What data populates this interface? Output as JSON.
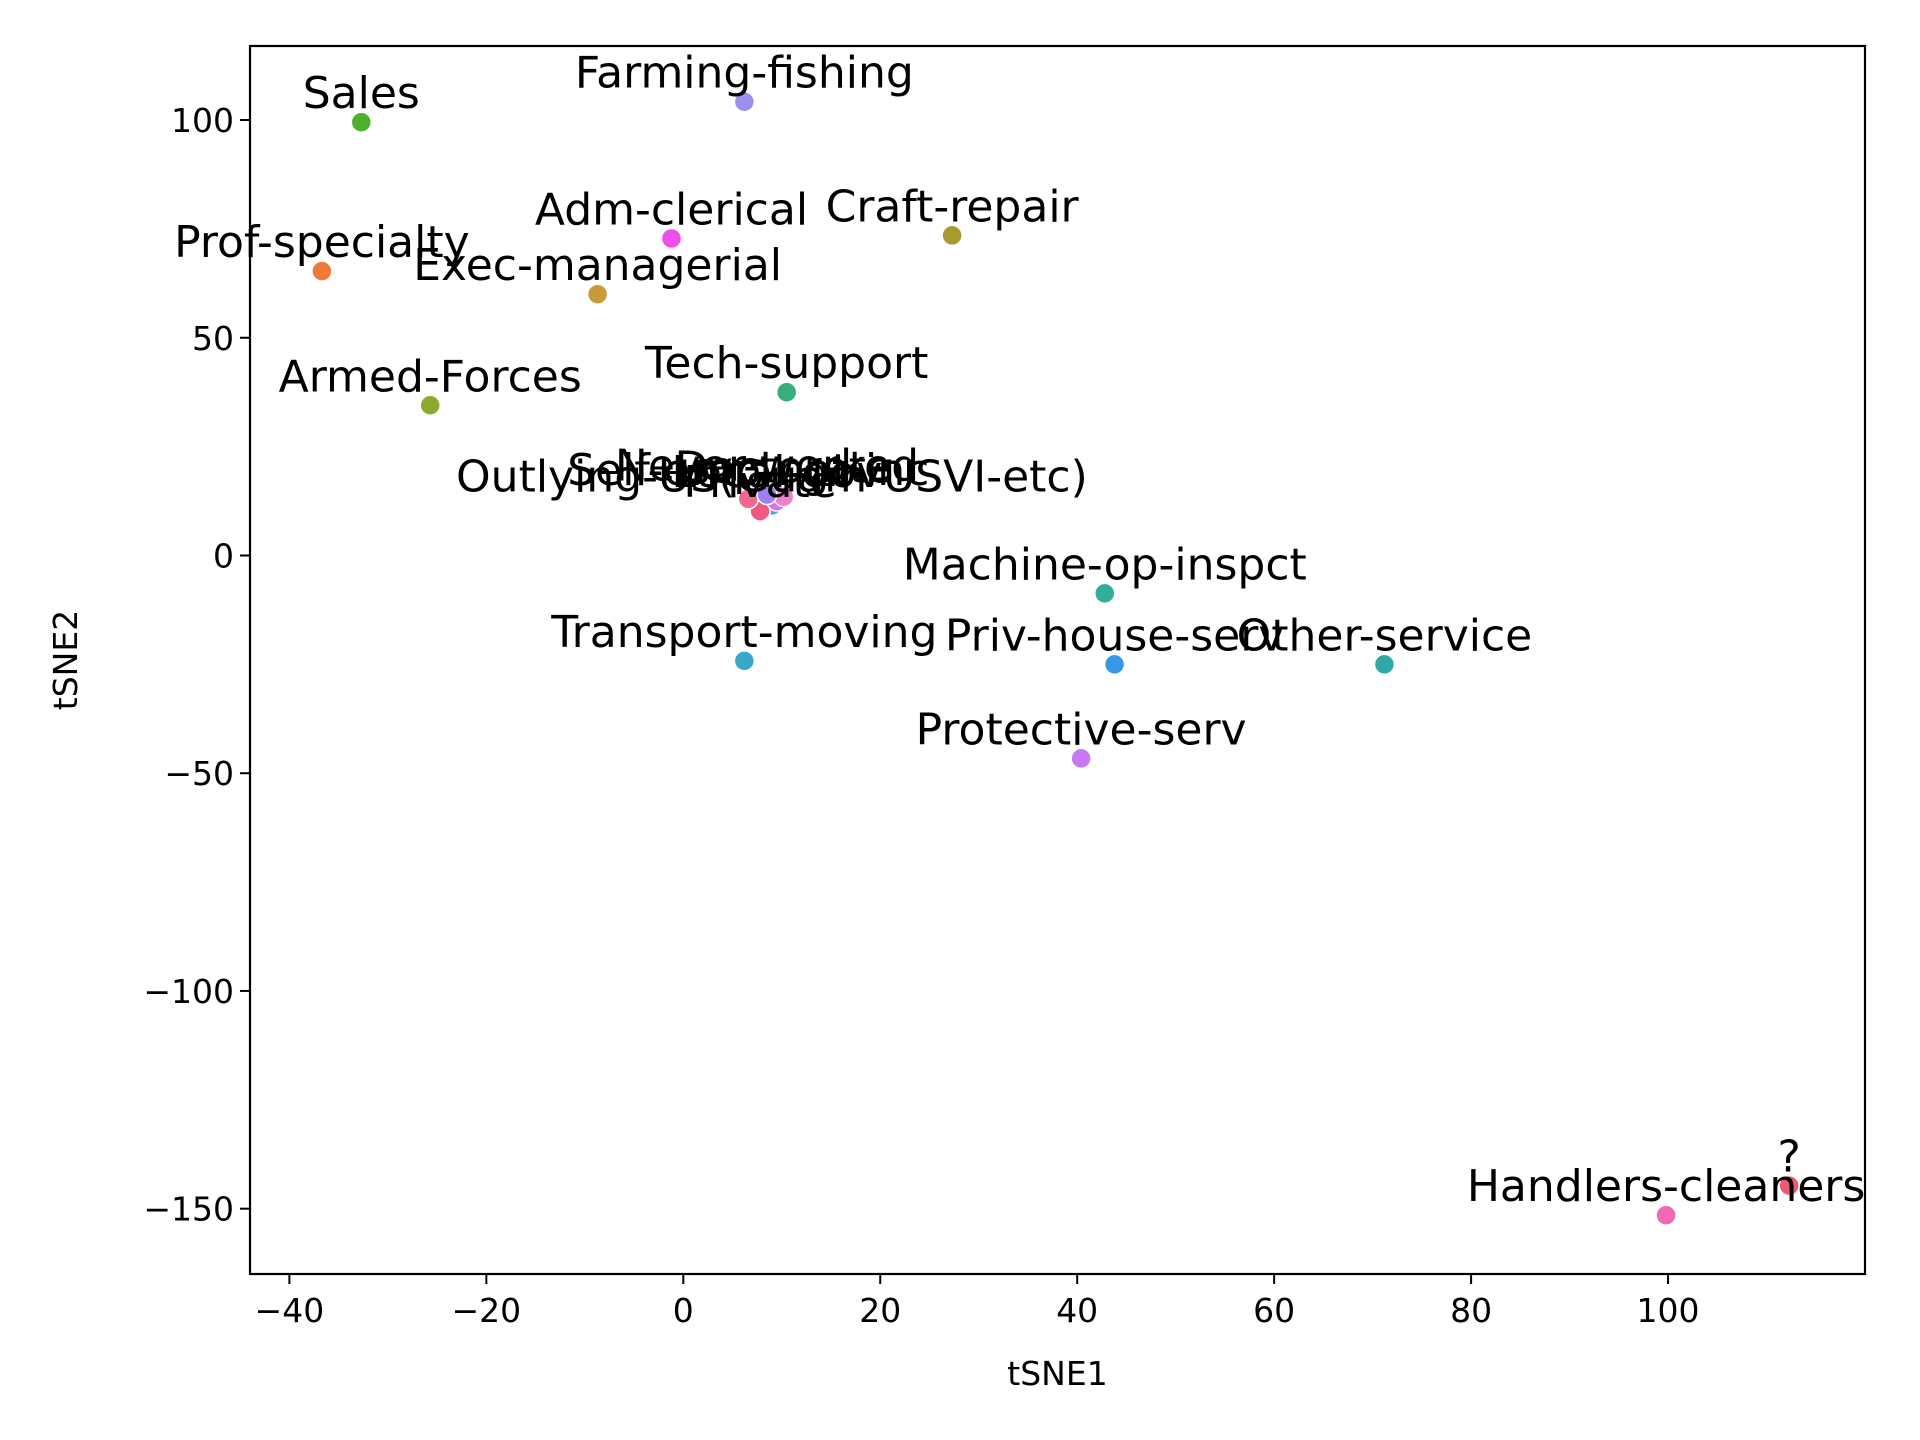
{
  "chart_data": {
    "type": "scatter",
    "title": "",
    "xlabel": "tSNE1",
    "ylabel": "tSNE2",
    "xlim": [
      -44,
      120
    ],
    "ylim": [
      -165,
      117
    ],
    "xticks": [
      -40,
      -20,
      0,
      20,
      40,
      60,
      80,
      100
    ],
    "yticks": [
      -150,
      -100,
      -50,
      0,
      50,
      100
    ],
    "xtick_labels": [
      "−40",
      "−20",
      "0",
      "20",
      "40",
      "60",
      "80",
      "100"
    ],
    "ytick_labels": [
      "−150",
      "−100",
      "−50",
      "0",
      "50",
      "100"
    ],
    "grid": false,
    "points": [
      {
        "label": "Sales",
        "x": -32.7,
        "y": 99.5,
        "color": "#4fb030"
      },
      {
        "label": "Farming-fishing",
        "x": 6.2,
        "y": 104.2,
        "color": "#9b90f0"
      },
      {
        "label": "Adm-clerical",
        "x": -1.2,
        "y": 72.8,
        "color": "#f04ee8"
      },
      {
        "label": "Craft-repair",
        "x": 27.3,
        "y": 73.5,
        "color": "#a89a30"
      },
      {
        "label": "Prof-specialty",
        "x": -36.7,
        "y": 65.3,
        "color": "#f07838"
      },
      {
        "label": "Exec-managerial",
        "x": -8.7,
        "y": 60.0,
        "color": "#c89a38"
      },
      {
        "label": "Tech-support",
        "x": 10.5,
        "y": 37.5,
        "color": "#38ae78"
      },
      {
        "label": "Armed-Forces",
        "x": -25.7,
        "y": 34.5,
        "color": "#8fa830"
      },
      {
        "label": "Outlying-US(Guam-USVI-etc)",
        "x": 9.0,
        "y": 11.5,
        "color": "#40b0d8"
      },
      {
        "label": "Private",
        "x": 7.8,
        "y": 10.2,
        "color": "#f05880"
      },
      {
        "label": "Self-emp-not-inc",
        "x": 6.6,
        "y": 13.0,
        "color": "#f06890"
      },
      {
        "label": "Local-gov",
        "x": 9.5,
        "y": 12.5,
        "color": "#d870f0"
      },
      {
        "label": "Doctorate",
        "x": 10.2,
        "y": 13.5,
        "color": "#f080d0"
      },
      {
        "label": "Never-worked",
        "x": 8.5,
        "y": 14.0,
        "color": "#a080f0"
      },
      {
        "label": "Machine-op-inspct",
        "x": 42.8,
        "y": -8.7,
        "color": "#30ae98"
      },
      {
        "label": "Transport-moving",
        "x": 6.2,
        "y": -24.2,
        "color": "#38a8c8"
      },
      {
        "label": "Priv-house-serv",
        "x": 43.8,
        "y": -25.0,
        "color": "#3898e8"
      },
      {
        "label": "Other-service",
        "x": 71.2,
        "y": -25.0,
        "color": "#30a8a8"
      },
      {
        "label": "Protective-serv",
        "x": 40.4,
        "y": -46.6,
        "color": "#c878f0"
      },
      {
        "label": "?",
        "x": 112.3,
        "y": -144.7,
        "color": "#f05878"
      },
      {
        "label": "Handlers-cleaners",
        "x": 99.8,
        "y": -151.5,
        "color": "#f068b8"
      }
    ]
  }
}
